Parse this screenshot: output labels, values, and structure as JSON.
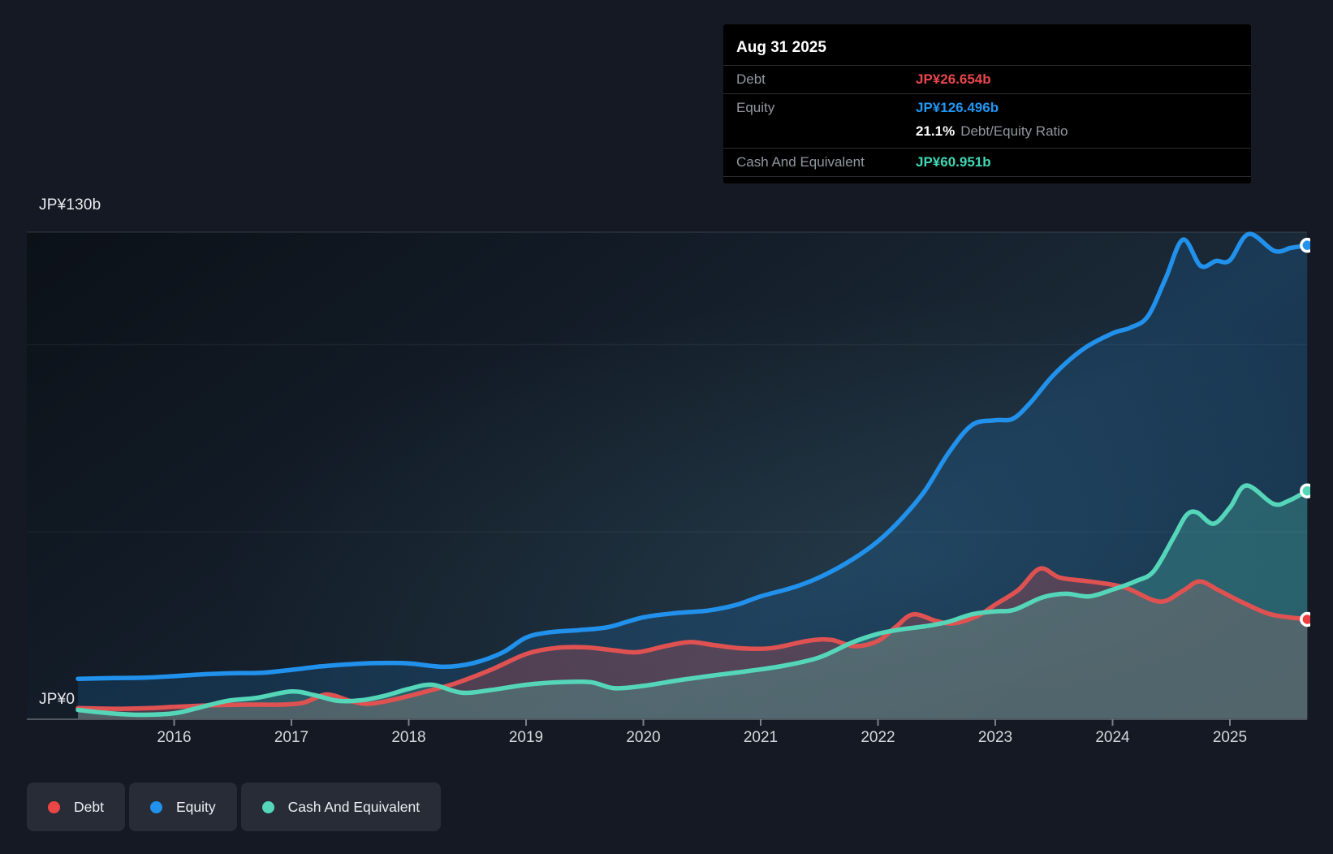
{
  "colors": {
    "page_bg": "#141923",
    "axis_line": "#50565e",
    "tick": "#7c8187",
    "grid_strong": "rgba(255,255,255,0.10)",
    "grid_faint": "rgba(255,255,255,0.05)",
    "debt": "#e05252",
    "debt_fill": "rgba(224,82,82,0.28)",
    "debt_marker": "#ec3e3e",
    "equity": "#2191ec",
    "equity_fill": "rgba(33,145,236,0.16)",
    "equity_marker": "#2191ec",
    "cash": "#55d6b9",
    "cash_fill": "rgba(85,214,185,0.26)",
    "cash_marker": "#55d6b9",
    "tooltip_debt_value": "#e8474b",
    "tooltip_equity_value": "#2196f3",
    "tooltip_cash_value": "#41d8b6"
  },
  "tooltip": {
    "date": "Aug 31 2025",
    "debt_label": "Debt",
    "debt_value": "JP¥26.654b",
    "equity_label": "Equity",
    "equity_value": "JP¥126.496b",
    "ratio_value": "21.1%",
    "ratio_label": "Debt/Equity Ratio",
    "cash_label": "Cash And Equivalent",
    "cash_value": "JP¥60.951b"
  },
  "legend": {
    "items": [
      {
        "label": "Debt",
        "color": "#ec4545"
      },
      {
        "label": "Equity",
        "color": "#2191ec"
      },
      {
        "label": "Cash And Equivalent",
        "color": "#55d6b9"
      }
    ]
  },
  "chart_data": {
    "type": "area",
    "unit": "JP¥ billions",
    "x_range": [
      2015.18,
      2025.66
    ],
    "y_axis": {
      "min": 0,
      "max": 130,
      "max_label": "JP¥130b",
      "zero_label": "JP¥0",
      "gridline_values": [
        130,
        100,
        50
      ]
    },
    "x_ticks": [
      {
        "year": 2016,
        "label": "2016"
      },
      {
        "year": 2017,
        "label": "2017"
      },
      {
        "year": 2018,
        "label": "2018"
      },
      {
        "year": 2019,
        "label": "2019"
      },
      {
        "year": 2020,
        "label": "2020"
      },
      {
        "year": 2021,
        "label": "2021"
      },
      {
        "year": 2022,
        "label": "2022"
      },
      {
        "year": 2023,
        "label": "2023"
      },
      {
        "year": 2024,
        "label": "2024"
      },
      {
        "year": 2025,
        "label": "2025"
      }
    ],
    "series": [
      {
        "name": "Equity",
        "color_key": "equity",
        "points": [
          [
            2015.18,
            10.8
          ],
          [
            2015.5,
            11.0
          ],
          [
            2015.75,
            11.1
          ],
          [
            2016.0,
            11.5
          ],
          [
            2016.25,
            12.0
          ],
          [
            2016.5,
            12.3
          ],
          [
            2016.75,
            12.4
          ],
          [
            2017.0,
            13.2
          ],
          [
            2017.25,
            14.1
          ],
          [
            2017.5,
            14.7
          ],
          [
            2017.75,
            15.0
          ],
          [
            2018.0,
            14.9
          ],
          [
            2018.3,
            14.0
          ],
          [
            2018.55,
            15.0
          ],
          [
            2018.8,
            17.8
          ],
          [
            2019.0,
            21.8
          ],
          [
            2019.2,
            23.2
          ],
          [
            2019.45,
            23.8
          ],
          [
            2019.7,
            24.6
          ],
          [
            2020.0,
            27.2
          ],
          [
            2020.3,
            28.4
          ],
          [
            2020.55,
            29.0
          ],
          [
            2020.8,
            30.6
          ],
          [
            2021.0,
            32.8
          ],
          [
            2021.3,
            35.4
          ],
          [
            2021.55,
            38.6
          ],
          [
            2021.8,
            43.0
          ],
          [
            2022.0,
            47.5
          ],
          [
            2022.2,
            53.5
          ],
          [
            2022.4,
            61.0
          ],
          [
            2022.6,
            71.0
          ],
          [
            2022.8,
            78.5
          ],
          [
            2023.0,
            79.8
          ],
          [
            2023.15,
            80.2
          ],
          [
            2023.3,
            84.5
          ],
          [
            2023.5,
            92.0
          ],
          [
            2023.75,
            98.8
          ],
          [
            2024.0,
            103.0
          ],
          [
            2024.15,
            104.5
          ],
          [
            2024.3,
            107.5
          ],
          [
            2024.45,
            117.5
          ],
          [
            2024.6,
            128.0
          ],
          [
            2024.75,
            121.0
          ],
          [
            2024.88,
            122.3
          ],
          [
            2025.0,
            122.5
          ],
          [
            2025.16,
            129.5
          ],
          [
            2025.38,
            125.0
          ],
          [
            2025.52,
            125.8
          ],
          [
            2025.66,
            126.496
          ]
        ]
      },
      {
        "name": "Debt",
        "color_key": "debt",
        "points": [
          [
            2015.18,
            3.0
          ],
          [
            2015.5,
            2.8
          ],
          [
            2015.8,
            3.0
          ],
          [
            2016.0,
            3.3
          ],
          [
            2016.3,
            3.7
          ],
          [
            2016.6,
            3.9
          ],
          [
            2016.9,
            3.9
          ],
          [
            2017.1,
            4.4
          ],
          [
            2017.3,
            6.6
          ],
          [
            2017.5,
            4.9
          ],
          [
            2017.65,
            4.1
          ],
          [
            2017.85,
            5.1
          ],
          [
            2018.1,
            7.0
          ],
          [
            2018.4,
            9.6
          ],
          [
            2018.7,
            13.2
          ],
          [
            2019.0,
            17.4
          ],
          [
            2019.25,
            19.0
          ],
          [
            2019.5,
            19.2
          ],
          [
            2019.75,
            18.4
          ],
          [
            2019.95,
            17.9
          ],
          [
            2020.2,
            19.6
          ],
          [
            2020.4,
            20.6
          ],
          [
            2020.6,
            19.8
          ],
          [
            2020.85,
            18.9
          ],
          [
            2021.1,
            19.0
          ],
          [
            2021.4,
            20.9
          ],
          [
            2021.6,
            21.2
          ],
          [
            2021.8,
            19.5
          ],
          [
            2022.0,
            20.9
          ],
          [
            2022.15,
            24.6
          ],
          [
            2022.3,
            28.0
          ],
          [
            2022.5,
            26.2
          ],
          [
            2022.65,
            25.6
          ],
          [
            2022.85,
            27.6
          ],
          [
            2023.0,
            30.6
          ],
          [
            2023.2,
            34.6
          ],
          [
            2023.38,
            40.2
          ],
          [
            2023.55,
            37.8
          ],
          [
            2023.8,
            36.8
          ],
          [
            2024.1,
            35.2
          ],
          [
            2024.4,
            31.4
          ],
          [
            2024.6,
            34.3
          ],
          [
            2024.74,
            36.8
          ],
          [
            2024.9,
            34.5
          ],
          [
            2025.1,
            31.3
          ],
          [
            2025.35,
            28.0
          ],
          [
            2025.66,
            26.654
          ]
        ]
      },
      {
        "name": "Cash And Equivalent",
        "color_key": "cash",
        "points": [
          [
            2015.18,
            2.5
          ],
          [
            2015.45,
            1.6
          ],
          [
            2015.7,
            1.2
          ],
          [
            2016.0,
            1.6
          ],
          [
            2016.2,
            3.0
          ],
          [
            2016.45,
            4.9
          ],
          [
            2016.7,
            5.7
          ],
          [
            2017.0,
            7.4
          ],
          [
            2017.2,
            6.4
          ],
          [
            2017.4,
            4.9
          ],
          [
            2017.6,
            5.1
          ],
          [
            2017.8,
            6.3
          ],
          [
            2018.0,
            8.1
          ],
          [
            2018.2,
            9.2
          ],
          [
            2018.45,
            7.1
          ],
          [
            2018.7,
            7.8
          ],
          [
            2019.0,
            9.2
          ],
          [
            2019.3,
            9.9
          ],
          [
            2019.55,
            9.9
          ],
          [
            2019.75,
            8.3
          ],
          [
            2020.0,
            8.9
          ],
          [
            2020.3,
            10.4
          ],
          [
            2020.6,
            11.7
          ],
          [
            2020.9,
            12.9
          ],
          [
            2021.2,
            14.3
          ],
          [
            2021.5,
            16.5
          ],
          [
            2021.78,
            20.5
          ],
          [
            2022.0,
            22.8
          ],
          [
            2022.2,
            24.0
          ],
          [
            2022.4,
            24.8
          ],
          [
            2022.6,
            26.0
          ],
          [
            2022.8,
            28.0
          ],
          [
            2023.0,
            28.8
          ],
          [
            2023.16,
            29.2
          ],
          [
            2023.4,
            32.5
          ],
          [
            2023.6,
            33.5
          ],
          [
            2023.8,
            32.8
          ],
          [
            2024.0,
            34.6
          ],
          [
            2024.2,
            36.9
          ],
          [
            2024.35,
            39.5
          ],
          [
            2024.52,
            48.5
          ],
          [
            2024.63,
            54.5
          ],
          [
            2024.72,
            55.2
          ],
          [
            2024.86,
            52.2
          ],
          [
            2025.0,
            56.5
          ],
          [
            2025.14,
            62.4
          ],
          [
            2025.37,
            57.5
          ],
          [
            2025.5,
            58.3
          ],
          [
            2025.66,
            60.951
          ]
        ]
      }
    ]
  }
}
